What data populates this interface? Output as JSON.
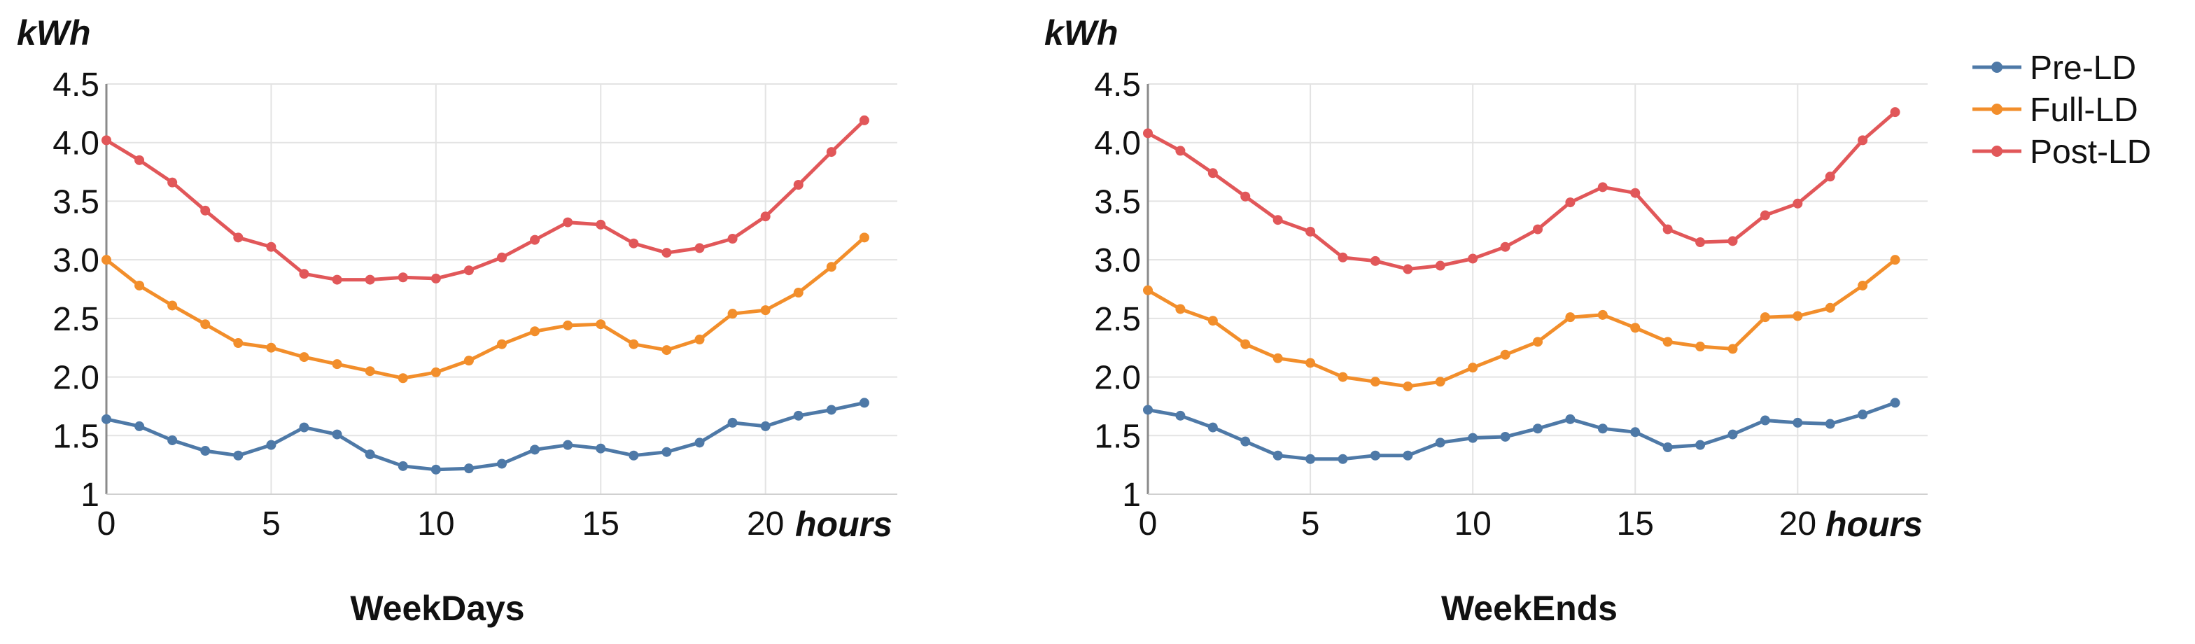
{
  "chart_data": [
    {
      "type": "line",
      "title": "WeekDays",
      "xlabel": "hours",
      "ylabel": "kWh",
      "xlim": [
        0,
        24
      ],
      "ylim": [
        1,
        4.5
      ],
      "x_ticks": [
        0,
        5,
        10,
        15,
        20
      ],
      "y_ticks": [
        "1",
        "1.5",
        "2.0",
        "2.5",
        "3.0",
        "3.5",
        "4.0",
        "4.5"
      ],
      "x": [
        0,
        1,
        2,
        3,
        4,
        5,
        6,
        7,
        8,
        9,
        10,
        11,
        12,
        13,
        14,
        15,
        16,
        17,
        18,
        19,
        20,
        21,
        22,
        23
      ],
      "series": [
        {
          "name": "Pre-LD",
          "color": "#4e79a7",
          "values": [
            1.64,
            1.58,
            1.46,
            1.37,
            1.33,
            1.42,
            1.57,
            1.51,
            1.34,
            1.24,
            1.21,
            1.22,
            1.26,
            1.38,
            1.42,
            1.39,
            1.33,
            1.36,
            1.44,
            1.61,
            1.58,
            1.67,
            1.72,
            1.78
          ]
        },
        {
          "name": "Full-LD",
          "color": "#f28e2b",
          "values": [
            3.0,
            2.78,
            2.61,
            2.45,
            2.29,
            2.25,
            2.17,
            2.11,
            2.05,
            1.99,
            2.04,
            2.14,
            2.28,
            2.39,
            2.44,
            2.45,
            2.28,
            2.23,
            2.32,
            2.54,
            2.57,
            2.72,
            2.94,
            3.19
          ]
        },
        {
          "name": "Post-LD",
          "color": "#e15759",
          "values": [
            4.02,
            3.85,
            3.66,
            3.42,
            3.19,
            3.11,
            2.88,
            2.83,
            2.83,
            2.85,
            2.84,
            2.91,
            3.02,
            3.17,
            3.32,
            3.3,
            3.14,
            3.06,
            3.1,
            3.18,
            3.37,
            3.64,
            3.92,
            4.19
          ]
        }
      ]
    },
    {
      "type": "line",
      "title": "WeekEnds",
      "xlabel": "hours",
      "ylabel": "kWh",
      "xlim": [
        0,
        24
      ],
      "ylim": [
        1,
        4.5
      ],
      "x_ticks": [
        0,
        5,
        10,
        15,
        20
      ],
      "y_ticks": [
        "1",
        "1.5",
        "2.0",
        "2.5",
        "3.0",
        "3.5",
        "4.0",
        "4.5"
      ],
      "x": [
        0,
        1,
        2,
        3,
        4,
        5,
        6,
        7,
        8,
        9,
        10,
        11,
        12,
        13,
        14,
        15,
        16,
        17,
        18,
        19,
        20,
        21,
        22,
        23
      ],
      "series": [
        {
          "name": "Pre-LD",
          "color": "#4e79a7",
          "values": [
            1.72,
            1.67,
            1.57,
            1.45,
            1.33,
            1.3,
            1.3,
            1.33,
            1.33,
            1.44,
            1.48,
            1.49,
            1.56,
            1.64,
            1.56,
            1.53,
            1.4,
            1.42,
            1.51,
            1.63,
            1.61,
            1.6,
            1.68,
            1.78
          ]
        },
        {
          "name": "Full-LD",
          "color": "#f28e2b",
          "values": [
            2.74,
            2.58,
            2.48,
            2.28,
            2.16,
            2.12,
            2.0,
            1.96,
            1.92,
            1.96,
            2.08,
            2.19,
            2.3,
            2.51,
            2.53,
            2.42,
            2.3,
            2.26,
            2.24,
            2.51,
            2.52,
            2.59,
            2.78,
            3.0
          ]
        },
        {
          "name": "Post-LD",
          "color": "#e15759",
          "values": [
            4.08,
            3.93,
            3.74,
            3.54,
            3.34,
            3.24,
            3.02,
            2.99,
            2.92,
            2.95,
            3.01,
            3.11,
            3.26,
            3.49,
            3.62,
            3.57,
            3.26,
            3.15,
            3.16,
            3.38,
            3.48,
            3.71,
            4.02,
            4.26
          ]
        }
      ]
    }
  ],
  "legend": {
    "position": "top-right",
    "items": [
      {
        "label": "Pre-LD",
        "color": "#4e79a7"
      },
      {
        "label": "Full-LD",
        "color": "#f28e2b"
      },
      {
        "label": "Post-LD",
        "color": "#e15759"
      }
    ]
  }
}
